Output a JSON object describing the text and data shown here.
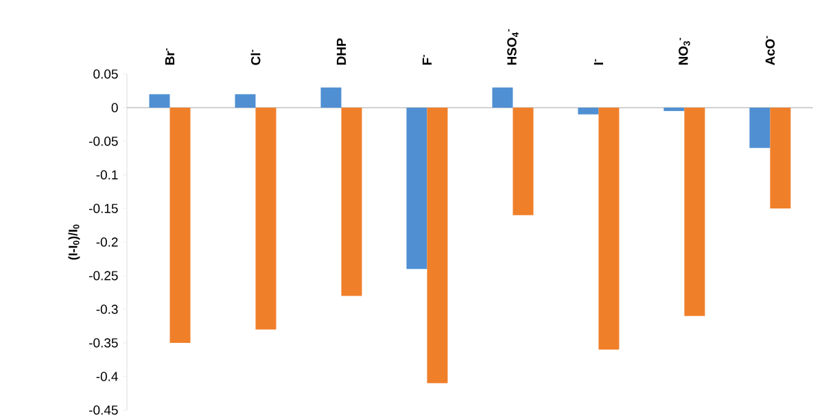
{
  "chart_data": {
    "type": "bar",
    "ylabel": "**(I-I$_{0}$)/I$_{0}$**",
    "categories": [
      "Br$^{-}$",
      "Cl$^{-}$",
      "DHP",
      "F$^{-}$",
      "HSO$_{4}$$^{-}$",
      "I$^{-}$",
      "NO$_{3}$$^{-}$",
      "AcO$^{-}$"
    ],
    "series": [
      {
        "color": "#4f8fd2",
        "values": [
          0.02,
          0.02,
          0.03,
          -0.24,
          0.03,
          -0.01,
          -0.005,
          -0.06
        ]
      },
      {
        "color": "#f07f2a",
        "values": [
          -0.35,
          -0.33,
          -0.28,
          -0.41,
          -0.16,
          -0.36,
          -0.31,
          -0.15
        ]
      }
    ],
    "ylim": [
      -0.45,
      0.05
    ],
    "yticks": [
      0.05,
      0,
      -0.05,
      -0.1,
      -0.15,
      -0.2,
      -0.25,
      -0.3,
      -0.35,
      -0.4,
      -0.45
    ]
  }
}
